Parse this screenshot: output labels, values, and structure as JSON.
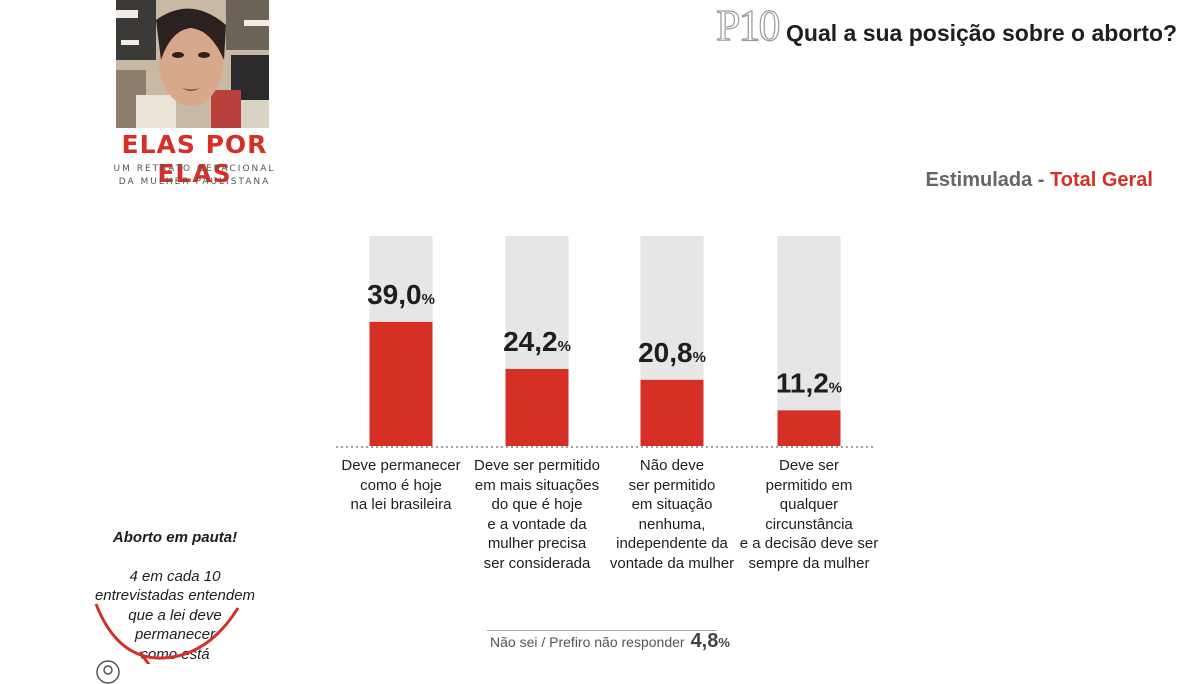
{
  "header": {
    "question_code": "P10",
    "question": "Qual a sua posição sobre o aborto?",
    "subtitle_prefix": "Estimulada -",
    "subtitle_highlight": "Total Geral"
  },
  "logo": {
    "title": "ELAS POR ELAS",
    "subtitle_line1": "UM RETRATO GERACIONAL",
    "subtitle_line2": "DA MULHER PAULISTANA"
  },
  "colors": {
    "accent": "#d62f25",
    "bar_background": "#e6e6e7",
    "text": "#1e1e1e"
  },
  "chart_data": {
    "type": "bar",
    "categories": [
      "Deve permanecer\ncomo é hoje\nna lei brasileira",
      "Deve ser permitido\nem mais situações\ndo que é hoje\ne a vontade da\nmulher precisa\nser considerada",
      "Não deve\nser permitido\nem situação\nnenhuma,\nindependente da\nvontade da mulher",
      "Deve ser\npermitido em\nqualquer\ncircunstância\ne a decisão deve ser\nsempre da mulher"
    ],
    "values": [
      39.0,
      24.2,
      20.8,
      11.2
    ],
    "value_labels": [
      "39,0",
      "24,2",
      "20,8",
      "11,2"
    ],
    "unit": "%",
    "ylim": [
      0,
      100
    ],
    "grid": false
  },
  "callout": {
    "title": "Aborto em pauta!",
    "text": "4 em cada 10\nentrevistadas entendem\nque a lei deve\npermanecer\ncomo está"
  },
  "footer": {
    "no_answer_label": "Não sei / Prefiro não responder",
    "no_answer_value": "4,8",
    "no_answer_unit": "%"
  },
  "icons": [
    "user-icon"
  ]
}
